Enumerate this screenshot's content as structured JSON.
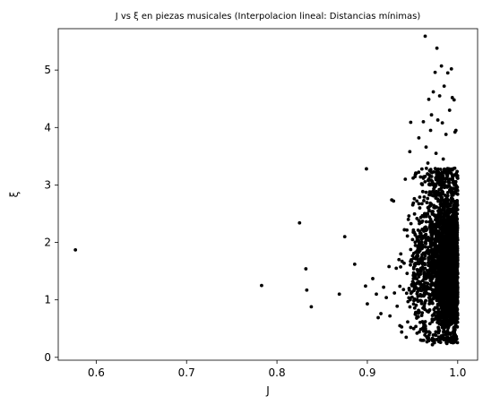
{
  "chart_data": {
    "type": "scatter",
    "title": "J vs ξ en piezas musicales (Interpolacion lineal: Distancias mínimas)",
    "xlabel": "J",
    "ylabel": "ξ",
    "xlim": [
      0.558,
      1.022
    ],
    "ylim": [
      -0.05,
      5.72
    ],
    "xticks": [
      0.6,
      0.7,
      0.8,
      0.9,
      1.0
    ],
    "xtick_labels": [
      "0.6",
      "0.7",
      "0.8",
      "0.9",
      "1.0"
    ],
    "yticks": [
      0,
      1,
      2,
      3,
      4,
      5
    ],
    "ytick_labels": [
      "0",
      "1",
      "2",
      "3",
      "4",
      "5"
    ],
    "grid": false,
    "marker_color": "#000000",
    "series": [
      {
        "points": [
          [
            0.577,
            1.87
          ],
          [
            0.783,
            1.25
          ],
          [
            0.825,
            2.34
          ],
          [
            0.832,
            1.54
          ],
          [
            0.833,
            1.17
          ],
          [
            0.838,
            0.88
          ],
          [
            0.869,
            1.1
          ],
          [
            0.875,
            2.1
          ],
          [
            0.886,
            1.62
          ],
          [
            0.899,
            3.28
          ],
          [
            0.898,
            1.24
          ],
          [
            0.9,
            0.93
          ],
          [
            0.906,
            1.37
          ],
          [
            0.91,
            1.1
          ],
          [
            0.912,
            0.69
          ],
          [
            0.915,
            0.76
          ],
          [
            0.918,
            1.22
          ],
          [
            0.921,
            1.04
          ],
          [
            0.924,
            1.58
          ],
          [
            0.925,
            0.72
          ],
          [
            0.927,
            2.74
          ],
          [
            0.929,
            2.72
          ],
          [
            0.93,
            1.12
          ],
          [
            0.932,
            1.55
          ],
          [
            0.933,
            0.89
          ],
          [
            0.935,
            1.7
          ],
          [
            0.936,
            0.55
          ],
          [
            0.937,
            1.8
          ],
          [
            0.938,
            0.44
          ],
          [
            0.94,
            1.18
          ],
          [
            0.941,
            2.22
          ],
          [
            0.942,
            3.1
          ],
          [
            0.943,
            0.35
          ],
          [
            0.944,
            1.46
          ],
          [
            0.945,
            0.97
          ],
          [
            0.946,
            2.46
          ],
          [
            0.947,
            3.58
          ],
          [
            0.948,
            4.09
          ],
          [
            0.948,
            0.52
          ],
          [
            0.95,
            2.05
          ],
          [
            0.951,
            1.3
          ],
          [
            0.952,
            2.76
          ],
          [
            0.953,
            0.75
          ],
          [
            0.954,
            3.2
          ],
          [
            0.955,
            0.42
          ],
          [
            0.956,
            1.91
          ],
          [
            0.957,
            3.82
          ],
          [
            0.958,
            2.6
          ],
          [
            0.959,
            0.3
          ],
          [
            0.96,
            3.02
          ],
          [
            0.961,
            0.62
          ],
          [
            0.962,
            4.1
          ],
          [
            0.963,
            1.48
          ],
          [
            0.964,
            5.59
          ],
          [
            0.965,
            3.66
          ],
          [
            0.966,
            0.27
          ],
          [
            0.967,
            3.38
          ],
          [
            0.968,
            4.49
          ],
          [
            0.969,
            2.88
          ],
          [
            0.97,
            3.95
          ],
          [
            0.971,
            4.22
          ],
          [
            0.972,
            0.33
          ],
          [
            0.973,
            4.62
          ],
          [
            0.974,
            2.98
          ],
          [
            0.975,
            4.96
          ],
          [
            0.976,
            3.55
          ],
          [
            0.977,
            5.38
          ],
          [
            0.978,
            4.13
          ],
          [
            0.979,
            0.28
          ],
          [
            0.98,
            4.55
          ],
          [
            0.981,
            3.18
          ],
          [
            0.982,
            5.07
          ],
          [
            0.983,
            4.08
          ],
          [
            0.984,
            3.45
          ],
          [
            0.985,
            4.72
          ],
          [
            0.986,
            2.82
          ],
          [
            0.987,
            3.88
          ],
          [
            0.988,
            0.24
          ],
          [
            0.989,
            4.95
          ],
          [
            0.99,
            3.28
          ],
          [
            0.991,
            4.3
          ],
          [
            0.992,
            0.4
          ],
          [
            0.993,
            5.02
          ],
          [
            0.994,
            4.52
          ],
          [
            0.995,
            3.04
          ],
          [
            0.996,
            4.48
          ],
          [
            0.997,
            3.92
          ],
          [
            0.998,
            3.95
          ],
          [
            0.999,
            0.32
          ],
          [
            0.972,
            0.22
          ],
          [
            0.981,
            0.26
          ],
          [
            0.99,
            0.29
          ]
        ],
        "dense_clusters": [
          {
            "x": [
              0.95,
              1.0
            ],
            "y": [
              0.25,
              3.3
            ],
            "count": 1800
          },
          {
            "x": [
              0.968,
              1.0
            ],
            "y": [
              0.6,
              2.4
            ],
            "count": 1400
          },
          {
            "x": [
              0.935,
              0.965
            ],
            "y": [
              0.45,
              2.4
            ],
            "count": 160
          }
        ]
      }
    ]
  }
}
